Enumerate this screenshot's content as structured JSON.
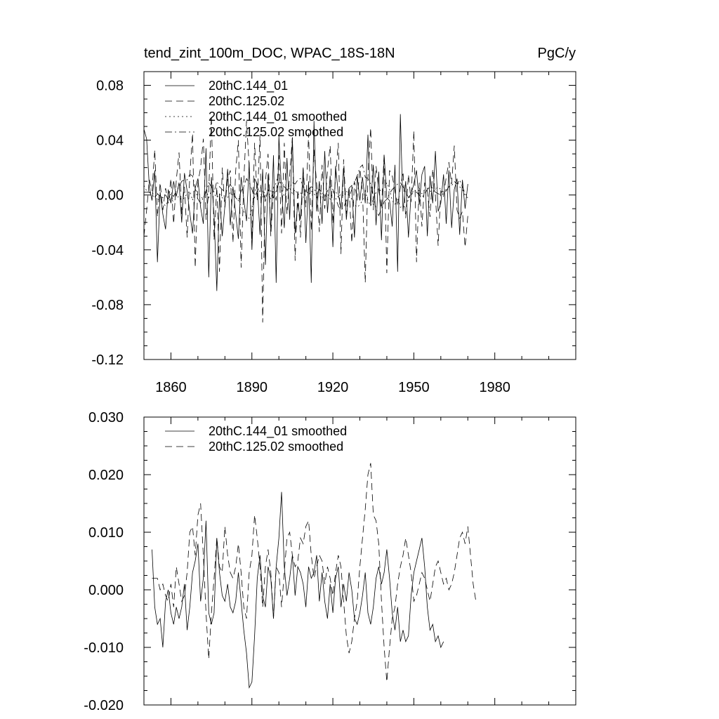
{
  "chart_data": [
    {
      "type": "line",
      "title": "tend_zint_100m_DOC, WPAC_18S-18N",
      "units": "PgC/y",
      "xlim": [
        1850,
        2010
      ],
      "ylim": [
        -0.12,
        0.09
      ],
      "xticks": [
        1860,
        1890,
        1920,
        1950,
        1980
      ],
      "xtick_labels": [
        "1860",
        "1890",
        "1920",
        "1950",
        "1980"
      ],
      "yticks": [
        -0.12,
        -0.08,
        -0.04,
        0.0,
        0.04,
        0.08
      ],
      "ytick_labels": [
        "-0.12",
        "-0.08",
        "-0.04",
        "0.00",
        "0.04",
        "0.08"
      ],
      "legend": [
        "20thC.144_01",
        "20thC.125.02",
        "20thC.144_01 smoothed",
        "20thC.125.02 smoothed"
      ],
      "series": [
        {
          "name": "20thC.144_01",
          "dash": "solid",
          "x_start": 1850,
          "x_step": 1,
          "values": [
            0.048,
            0.041,
            0.006,
            -0.004,
            0.018,
            -0.049,
            0.002,
            -0.014,
            -0.025,
            0.004,
            -0.006,
            0.01,
            -0.001,
            0.009,
            -0.02,
            0.016,
            0.003,
            -0.013,
            -0.028,
            0.005,
            0.012,
            -0.009,
            -0.021,
            0.034,
            -0.06,
            0.013,
            -0.015,
            -0.07,
            0.001,
            -0.03,
            -0.008,
            0.019,
            -0.022,
            0.006,
            -0.014,
            -0.032,
            0.013,
            -0.003,
            -0.019,
            0.024,
            -0.04,
            0.012,
            0.008,
            -0.029,
            0.019,
            -0.051,
            0.015,
            -0.026,
            0.029,
            -0.064,
            0.043,
            0.003,
            -0.024,
            0.027,
            -0.018,
            0.042,
            -0.028,
            -0.006,
            -0.018,
            0.02,
            -0.035,
            0.01,
            -0.064,
            0.054,
            -0.012,
            0.01,
            -0.021,
            0.032,
            -0.013,
            0.014,
            -0.038,
            0.021,
            0.001,
            -0.01,
            0.02,
            -0.018,
            0.005,
            0.007,
            -0.031,
            0.014,
            -0.004,
            0.013,
            -0.006,
            0.044,
            -0.008,
            0.022,
            -0.022,
            0.017,
            -0.033,
            0.029,
            -0.002,
            -0.004,
            -0.023,
            0.022,
            -0.056,
            0.059,
            -0.012,
            0.01,
            -0.031,
            0.001,
            0.008,
            0.018,
            -0.007,
            0.015,
            0.021,
            -0.03,
            0.014,
            -0.006,
            0.032,
            -0.012,
            -0.006,
            0.015,
            -0.021,
            0.018,
            -0.024,
            0.004,
            0.012,
            -0.029,
            0.011,
            -0.01,
            0.008
          ]
        },
        {
          "name": "20thC.125.02",
          "dash": "dashed",
          "x_start": 1850,
          "x_step": 1,
          "values": [
            -0.03,
            -0.011,
            0.011,
            0.003,
            0.033,
            -0.016,
            0.009,
            -0.011,
            0.005,
            -0.006,
            0.012,
            -0.021,
            0.011,
            0.031,
            -0.014,
            0.006,
            -0.031,
            0.014,
            0.045,
            -0.053,
            0.009,
            0.02,
            0.041,
            -0.018,
            0.003,
            0.058,
            -0.033,
            0.006,
            -0.056,
            0.02,
            -0.009,
            0.012,
            0.018,
            -0.035,
            0.018,
            0.04,
            -0.053,
            0.01,
            0.054,
            0.021,
            -0.032,
            0.038,
            -0.004,
            0.044,
            -0.093,
            0.01,
            0.03,
            -0.03,
            0.006,
            -0.004,
            0.029,
            -0.028,
            0.038,
            -0.014,
            0.015,
            0.042,
            -0.048,
            0.004,
            -0.031,
            0.019,
            -0.009,
            0.045,
            -0.026,
            0.033,
            0.008,
            -0.027,
            0.022,
            -0.01,
            0.018,
            0.036,
            -0.021,
            0.014,
            0.038,
            -0.043,
            0.026,
            -0.014,
            0.006,
            -0.035,
            0.01,
            -0.004,
            0.019,
            0.003,
            -0.064,
            0.013,
            0.049,
            -0.011,
            0.021,
            0.004,
            -0.01,
            0.03,
            -0.057,
            0.018,
            0.014,
            0.003,
            -0.008,
            0.005,
            0.017,
            -0.017,
            0.015,
            -0.005,
            0.047,
            -0.049,
            0.009,
            -0.023,
            0.009,
            0.003,
            -0.016,
            0.019,
            0.0,
            -0.037,
            0.003,
            -0.001,
            0.013,
            0.024,
            0.008,
            0.036,
            -0.011,
            -0.017,
            -0.012,
            -0.038,
            -0.015
          ]
        },
        {
          "name": "20thC.144_01 smoothed",
          "dash": "dotted",
          "x_start": 1850,
          "x_step": 1,
          "values": [
            0.007,
            0.003,
            0.002,
            0.002,
            -0.001,
            -0.003,
            -0.004,
            -0.006,
            -0.008,
            -0.004,
            -0.003,
            -0.005,
            -0.002,
            -0.001,
            -0.004,
            -0.002,
            0.001,
            0.003,
            -0.004,
            0.004,
            0.002,
            -0.001,
            -0.003,
            0.004,
            -0.002,
            0.003,
            0.001,
            -0.002,
            0.001,
            -0.002,
            -0.004,
            -0.002,
            0.002,
            0.0,
            -0.002,
            -0.004,
            -0.008,
            -0.012,
            -0.016,
            -0.017,
            -0.01,
            0.002,
            0.006,
            0.002,
            -0.002,
            0.005,
            0.004,
            -0.003,
            0.004,
            0.009,
            0.016,
            0.004,
            -0.001,
            0.003,
            0.005,
            0.001,
            0.004,
            0.0,
            0.002,
            -0.002,
            0.004,
            0.0,
            0.003,
            0.001,
            -0.002,
            0.004,
            -0.001,
            -0.004,
            0.001,
            -0.003,
            0.002,
            0.003,
            -0.002,
            0.001,
            -0.001,
            0.003,
            0.0,
            -0.003,
            -0.007,
            -0.009,
            -0.007,
            -0.004,
            0.003,
            -0.004,
            -0.008,
            -0.003,
            0.002,
            0.005,
            0.002,
            0.004,
            0.009,
            0.004,
            -0.004,
            -0.007,
            -0.002,
            -0.009,
            -0.008,
            -0.009,
            -0.003,
            0.0,
            0.002,
            0.004,
            0.003,
            0.001,
            0.004,
            0.005,
            0.003,
            0.002,
            0.004,
            0.006,
            0.004,
            0.002,
            0.004,
            0.006,
            0.007,
            0.009,
            0.01,
            0.006,
            0.004,
            -0.001,
            -0.002
          ]
        },
        {
          "name": "20thC.125.02 smoothed",
          "dash": "dashdot",
          "x_start": 1850,
          "x_step": 1,
          "values": [
            0.002,
            0.002,
            0.002,
            0.0,
            -0.002,
            0.001,
            -0.001,
            -0.002,
            0.0,
            -0.003,
            0.001,
            -0.001,
            0.003,
            0.006,
            0.01,
            0.011,
            0.011,
            0.015,
            0.014,
            0.005,
            -0.003,
            -0.006,
            -0.002,
            0.002,
            0.009,
            0.006,
            0.002,
            0.01,
            0.006,
            0.004,
            0.002,
            0.004,
            0.008,
            0.003,
            -0.002,
            -0.004,
            0.003,
            0.006,
            0.012,
            0.009,
            0.004,
            -0.002,
            0.003,
            0.006,
            0.003,
            -0.004,
            0.004,
            0.003,
            -0.002,
            0.003,
            0.009,
            0.01,
            0.006,
            0.004,
            0.005,
            0.009,
            0.008,
            0.011,
            0.012,
            0.006,
            0.002,
            0.004,
            0.006,
            0.005,
            0.001,
            0.004,
            0.002,
            -0.001,
            0.003,
            0.006,
            0.004,
            -0.002,
            -0.008,
            -0.011,
            -0.009,
            -0.004,
            -0.002,
            0.004,
            0.009,
            0.014,
            0.02,
            0.022,
            0.013,
            0.012,
            0.008,
            -0.002,
            -0.01,
            -0.015,
            -0.01,
            -0.005,
            -0.003,
            0.001,
            0.004,
            0.006,
            0.008,
            0.009,
            0.006,
            0.003,
            -0.002,
            0.001,
            0.003,
            0.002,
            0.0,
            -0.002,
            0.001,
            0.004,
            0.006,
            0.005,
            0.002,
            0.001,
            0.0,
            0.001,
            0.003,
            0.006,
            0.009,
            0.01,
            0.008,
            0.011,
            0.006,
            0.001,
            -0.002
          ]
        }
      ]
    },
    {
      "type": "line",
      "title": "",
      "units": "",
      "xlim": [
        1850,
        2010
      ],
      "ylim": [
        -0.02,
        0.03
      ],
      "xticks": [
        1860,
        1890,
        1920,
        1950,
        1980
      ],
      "xtick_labels": [],
      "yticks": [
        -0.02,
        -0.01,
        0.0,
        0.01,
        0.02,
        0.03
      ],
      "ytick_labels": [
        "-0.020",
        "-0.010",
        "0.000",
        "0.010",
        "0.020",
        "0.030"
      ],
      "legend": [
        "20thC.144_01 smoothed",
        "20thC.125.02 smoothed"
      ],
      "series": [
        {
          "name": "20thC.144_01 smoothed",
          "dash": "solid",
          "x_start": 1853,
          "x_step": 1,
          "values": [
            0.007,
            -0.003,
            -0.006,
            -0.005,
            -0.01,
            -0.002,
            0.0,
            -0.004,
            -0.006,
            -0.003,
            -0.005,
            -0.003,
            0.001,
            -0.007,
            -0.003,
            0.003,
            0.005,
            0.008,
            -0.002,
            0.002,
            0.012,
            -0.004,
            -0.006,
            -0.004,
            0.009,
            0.003,
            -0.001,
            -0.002,
            0.001,
            -0.003,
            -0.004,
            -0.002,
            0.003,
            -0.002,
            -0.007,
            -0.011,
            -0.017,
            -0.016,
            -0.008,
            0.002,
            0.006,
            -0.001,
            -0.003,
            0.004,
            0.002,
            -0.005,
            0.004,
            0.009,
            0.017,
            0.004,
            -0.001,
            0.002,
            0.006,
            -0.001,
            0.004,
            0.003,
            0.001,
            -0.003,
            0.004,
            0.002,
            0.003,
            0.006,
            -0.002,
            0.003,
            -0.002,
            -0.005,
            0.001,
            -0.004,
            0.002,
            0.004,
            -0.003,
            0.001,
            -0.002,
            0.003,
            0.0,
            -0.005,
            -0.006,
            -0.004,
            -0.001,
            0.003,
            -0.004,
            -0.006,
            -0.003,
            0.002,
            0.004,
            0.001,
            0.003,
            0.007,
            0.002,
            -0.004,
            -0.007,
            -0.003,
            -0.009,
            -0.007,
            -0.009,
            -0.008,
            -0.001,
            0.003,
            0.005,
            0.007,
            0.009,
            0.004,
            -0.003,
            -0.007,
            -0.006,
            -0.009,
            -0.008,
            -0.01,
            -0.009
          ]
        },
        {
          "name": "20thC.125.02 smoothed",
          "dash": "dashed",
          "x_start": 1853,
          "x_step": 1,
          "values": [
            0.002,
            0.002,
            0.002,
            0.0,
            0.001,
            -0.001,
            -0.002,
            0.001,
            -0.003,
            0.004,
            0.001,
            -0.002,
            -0.001,
            0.003,
            0.01,
            0.011,
            0.006,
            0.013,
            0.015,
            0.006,
            -0.004,
            -0.012,
            -0.004,
            0.002,
            0.009,
            0.004,
            0.003,
            0.011,
            0.006,
            0.003,
            0.002,
            0.004,
            0.008,
            0.003,
            -0.003,
            -0.005,
            0.003,
            0.006,
            0.013,
            0.009,
            0.004,
            -0.003,
            0.004,
            0.007,
            0.003,
            -0.005,
            0.004,
            0.003,
            -0.003,
            0.003,
            0.009,
            0.01,
            0.006,
            0.004,
            0.005,
            0.009,
            0.008,
            0.011,
            0.012,
            0.006,
            0.002,
            0.004,
            0.006,
            0.005,
            0.001,
            0.004,
            0.002,
            -0.001,
            0.003,
            0.006,
            0.004,
            -0.002,
            -0.008,
            -0.011,
            -0.009,
            -0.005,
            -0.002,
            0.004,
            0.009,
            0.014,
            0.02,
            0.022,
            0.013,
            0.012,
            0.008,
            -0.002,
            -0.01,
            -0.016,
            -0.01,
            -0.005,
            -0.003,
            0.001,
            0.004,
            0.006,
            0.009,
            0.006,
            0.003,
            -0.002,
            -0.001,
            0.001,
            0.003,
            0.002,
            0.0,
            -0.002,
            0.001,
            0.004,
            0.005,
            0.003,
            0.001,
            0.002,
            0.0,
            0.001,
            0.003,
            0.006,
            0.009,
            0.01,
            0.008,
            0.011,
            0.006,
            0.001,
            -0.002
          ]
        }
      ]
    }
  ]
}
